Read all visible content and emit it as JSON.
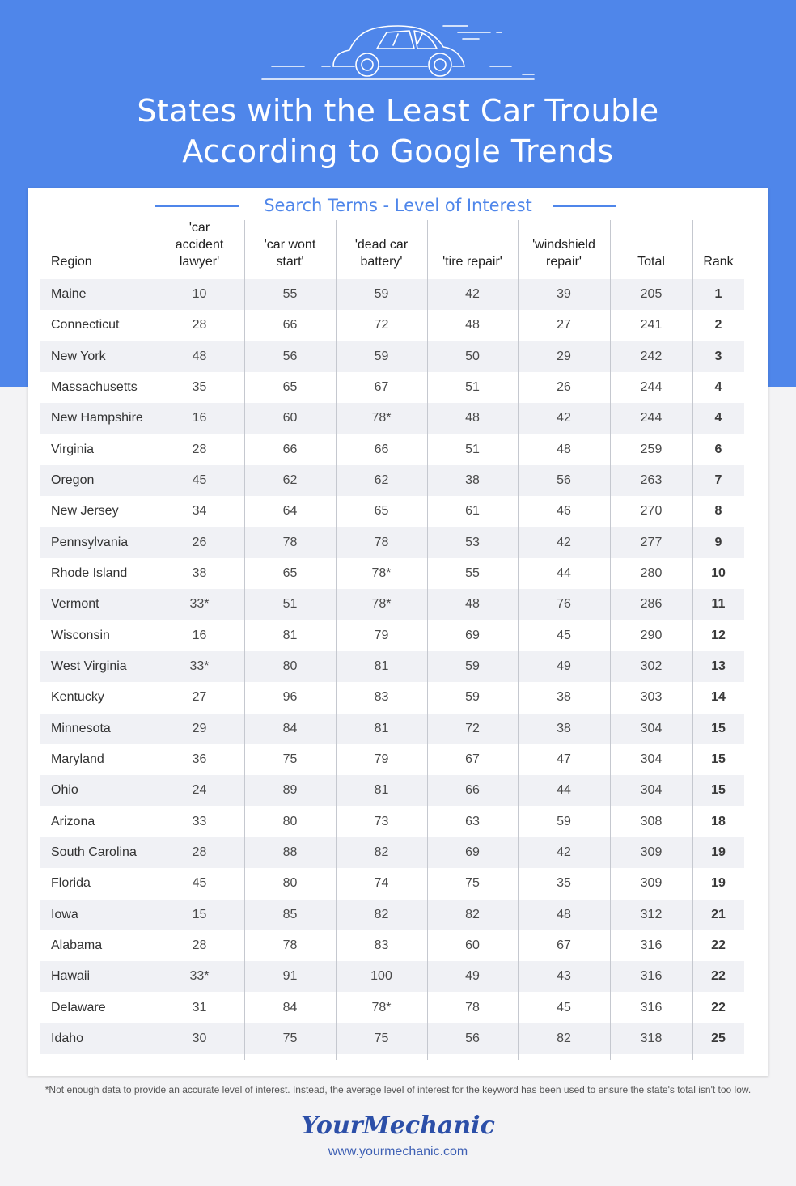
{
  "title_line1": "States with the Least Car Trouble",
  "title_line2": "According to Google Trends",
  "subtitle": "Search Terms - Level of Interest",
  "headers": [
    "Region",
    "'car accident lawyer'",
    "'car wont start'",
    "'dead car battery'",
    "'tire repair'",
    "'windshield repair'",
    "Total",
    "Rank"
  ],
  "header_lines": [
    [
      "Region"
    ],
    [
      "'car",
      "accident",
      "lawyer'"
    ],
    [
      "'car wont",
      "start'"
    ],
    [
      "'dead car",
      "battery'"
    ],
    [
      "'tire repair'"
    ],
    [
      "'windshield",
      "repair'"
    ],
    [
      "Total"
    ],
    [
      "Rank"
    ]
  ],
  "rows": [
    [
      "Maine",
      "10",
      "55",
      "59",
      "42",
      "39",
      "205",
      "1"
    ],
    [
      "Connecticut",
      "28",
      "66",
      "72",
      "48",
      "27",
      "241",
      "2"
    ],
    [
      "New York",
      "48",
      "56",
      "59",
      "50",
      "29",
      "242",
      "3"
    ],
    [
      "Massachusetts",
      "35",
      "65",
      "67",
      "51",
      "26",
      "244",
      "4"
    ],
    [
      "New Hampshire",
      "16",
      "60",
      "78*",
      "48",
      "42",
      "244",
      "4"
    ],
    [
      "Virginia",
      "28",
      "66",
      "66",
      "51",
      "48",
      "259",
      "6"
    ],
    [
      "Oregon",
      "45",
      "62",
      "62",
      "38",
      "56",
      "263",
      "7"
    ],
    [
      "New Jersey",
      "34",
      "64",
      "65",
      "61",
      "46",
      "270",
      "8"
    ],
    [
      "Pennsylvania",
      "26",
      "78",
      "78",
      "53",
      "42",
      "277",
      "9"
    ],
    [
      "Rhode Island",
      "38",
      "65",
      "78*",
      "55",
      "44",
      "280",
      "10"
    ],
    [
      "Vermont",
      "33*",
      "51",
      "78*",
      "48",
      "76",
      "286",
      "11"
    ],
    [
      "Wisconsin",
      "16",
      "81",
      "79",
      "69",
      "45",
      "290",
      "12"
    ],
    [
      "West Virginia",
      "33*",
      "80",
      "81",
      "59",
      "49",
      "302",
      "13"
    ],
    [
      "Kentucky",
      "27",
      "96",
      "83",
      "59",
      "38",
      "303",
      "14"
    ],
    [
      "Minnesota",
      "29",
      "84",
      "81",
      "72",
      "38",
      "304",
      "15"
    ],
    [
      "Maryland",
      "36",
      "75",
      "79",
      "67",
      "47",
      "304",
      "15"
    ],
    [
      "Ohio",
      "24",
      "89",
      "81",
      "66",
      "44",
      "304",
      "15"
    ],
    [
      "Arizona",
      "33",
      "80",
      "73",
      "63",
      "59",
      "308",
      "18"
    ],
    [
      "South Carolina",
      "28",
      "88",
      "82",
      "69",
      "42",
      "309",
      "19"
    ],
    [
      "Florida",
      "45",
      "80",
      "74",
      "75",
      "35",
      "309",
      "19"
    ],
    [
      "Iowa",
      "15",
      "85",
      "82",
      "82",
      "48",
      "312",
      "21"
    ],
    [
      "Alabama",
      "28",
      "78",
      "83",
      "60",
      "67",
      "316",
      "22"
    ],
    [
      "Hawaii",
      "33*",
      "91",
      "100",
      "49",
      "43",
      "316",
      "22"
    ],
    [
      "Delaware",
      "31",
      "84",
      "78*",
      "78",
      "45",
      "316",
      "22"
    ],
    [
      "Idaho",
      "30",
      "75",
      "75",
      "56",
      "82",
      "318",
      "25"
    ]
  ],
  "footnote": "*Not enough data to provide an accurate level of interest. Instead, the average level of interest for the keyword has been used to ensure the state's total isn't too low.",
  "brand": "YourMechanic",
  "url": "www.yourmechanic.com",
  "colors": {
    "hero": "#4f86ea",
    "accent": "#4f86ea",
    "brand": "#2c4fa8"
  },
  "chart_data": {
    "type": "table",
    "title": "States with the Least Car Trouble According to Google Trends",
    "subtitle": "Search Terms - Level of Interest",
    "columns": [
      "Region",
      "'car accident lawyer'",
      "'car wont start'",
      "'dead car battery'",
      "'tire repair'",
      "'windshield repair'",
      "Total",
      "Rank"
    ],
    "row_count": 25
  }
}
